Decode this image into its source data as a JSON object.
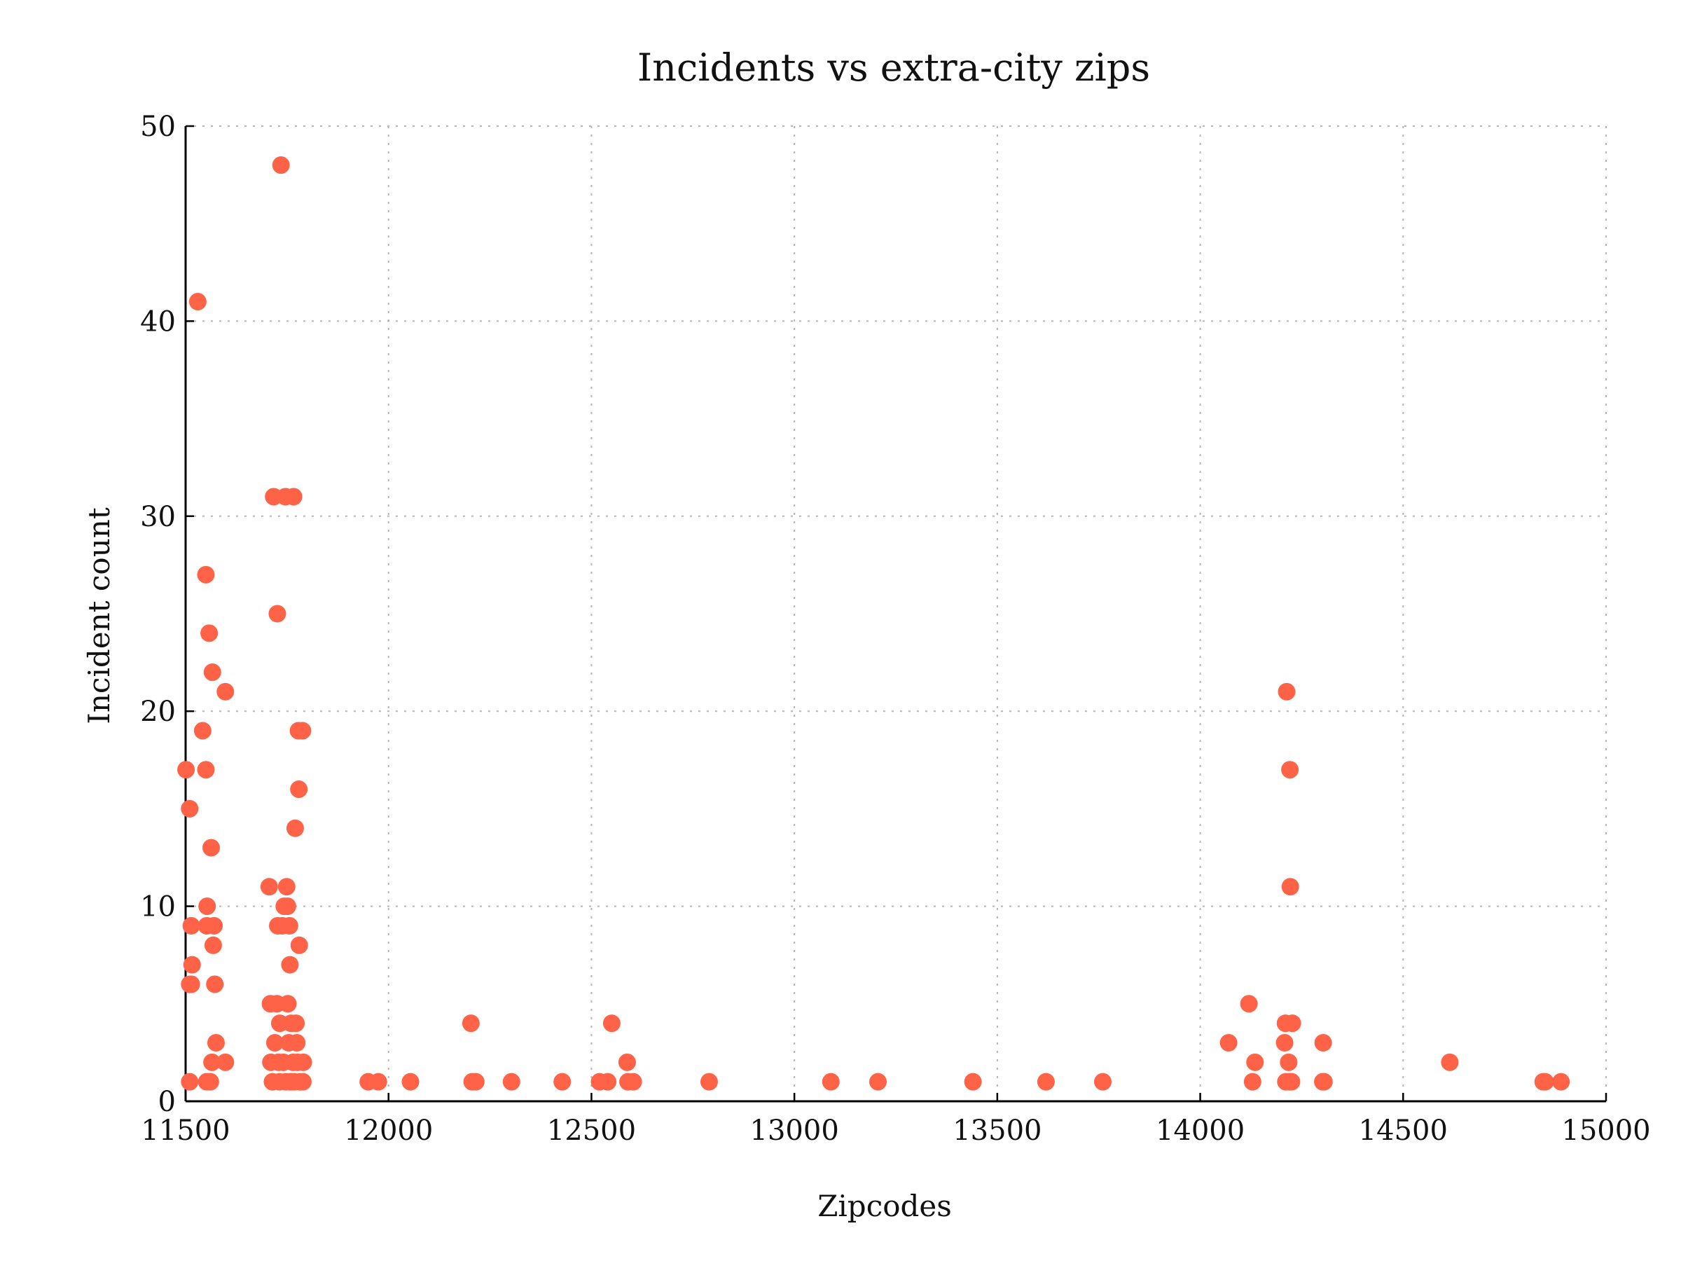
{
  "chart_data": {
    "type": "scatter",
    "title": "Incidents vs extra-city zips",
    "xlabel": "Zipcodes",
    "ylabel": "Incident count",
    "xlim": [
      11500,
      15000
    ],
    "ylim": [
      0,
      50
    ],
    "xticks": [
      11500,
      12000,
      12500,
      13000,
      13500,
      14000,
      14500,
      15000
    ],
    "yticks": [
      0,
      10,
      20,
      30,
      40,
      50
    ],
    "grid": true,
    "marker_color": "#ff6347",
    "points": [
      [
        11501,
        17
      ],
      [
        11510,
        1
      ],
      [
        11510,
        15
      ],
      [
        11510,
        6
      ],
      [
        11514,
        6
      ],
      [
        11514,
        9
      ],
      [
        11516,
        7
      ],
      [
        11530,
        41
      ],
      [
        11542,
        19
      ],
      [
        11550,
        27
      ],
      [
        11550,
        17
      ],
      [
        11552,
        9
      ],
      [
        11553,
        10
      ],
      [
        11558,
        24
      ],
      [
        11561,
        1
      ],
      [
        11563,
        13
      ],
      [
        11565,
        2
      ],
      [
        11566,
        22
      ],
      [
        11568,
        8
      ],
      [
        11570,
        9
      ],
      [
        11572,
        6
      ],
      [
        11575,
        3
      ],
      [
        11598,
        2
      ],
      [
        11598,
        21
      ],
      [
        11552,
        1
      ],
      [
        11706,
        11
      ],
      [
        11709,
        5
      ],
      [
        11710,
        2
      ],
      [
        11714,
        1
      ],
      [
        11717,
        31
      ],
      [
        11720,
        3
      ],
      [
        11725,
        5
      ],
      [
        11726,
        25
      ],
      [
        11727,
        9
      ],
      [
        11729,
        2
      ],
      [
        11731,
        1
      ],
      [
        11732,
        4
      ],
      [
        11735,
        48
      ],
      [
        11738,
        9
      ],
      [
        11741,
        2
      ],
      [
        11743,
        10
      ],
      [
        11746,
        31
      ],
      [
        11747,
        1
      ],
      [
        11749,
        11
      ],
      [
        11751,
        10
      ],
      [
        11752,
        5
      ],
      [
        11754,
        3
      ],
      [
        11756,
        9
      ],
      [
        11757,
        7
      ],
      [
        11758,
        1
      ],
      [
        11760,
        4
      ],
      [
        11762,
        1
      ],
      [
        11765,
        2
      ],
      [
        11766,
        31
      ],
      [
        11768,
        1
      ],
      [
        11770,
        14
      ],
      [
        11772,
        4
      ],
      [
        11774,
        3
      ],
      [
        11776,
        2
      ],
      [
        11778,
        19
      ],
      [
        11779,
        16
      ],
      [
        11780,
        8
      ],
      [
        11782,
        1
      ],
      [
        11788,
        19
      ],
      [
        11789,
        1
      ],
      [
        11790,
        2
      ],
      [
        11950,
        1
      ],
      [
        11975,
        1
      ],
      [
        12054,
        1
      ],
      [
        12203,
        4
      ],
      [
        12206,
        1
      ],
      [
        12215,
        1
      ],
      [
        12303,
        1
      ],
      [
        12428,
        1
      ],
      [
        12520,
        1
      ],
      [
        12540,
        1
      ],
      [
        12550,
        4
      ],
      [
        12588,
        2
      ],
      [
        12590,
        1
      ],
      [
        12603,
        1
      ],
      [
        12790,
        1
      ],
      [
        13090,
        1
      ],
      [
        13206,
        1
      ],
      [
        13440,
        1
      ],
      [
        13620,
        1
      ],
      [
        13760,
        1
      ],
      [
        14070,
        3
      ],
      [
        14120,
        5
      ],
      [
        14129,
        1
      ],
      [
        14135,
        2
      ],
      [
        14208,
        3
      ],
      [
        14210,
        4
      ],
      [
        14211,
        1
      ],
      [
        14213,
        21
      ],
      [
        14218,
        2
      ],
      [
        14220,
        1
      ],
      [
        14221,
        17
      ],
      [
        14222,
        11
      ],
      [
        14225,
        1
      ],
      [
        14227,
        4
      ],
      [
        14302,
        1
      ],
      [
        14303,
        3
      ],
      [
        14305,
        1
      ],
      [
        14615,
        2
      ],
      [
        14845,
        1
      ],
      [
        14850,
        1
      ],
      [
        14889,
        1
      ]
    ]
  }
}
